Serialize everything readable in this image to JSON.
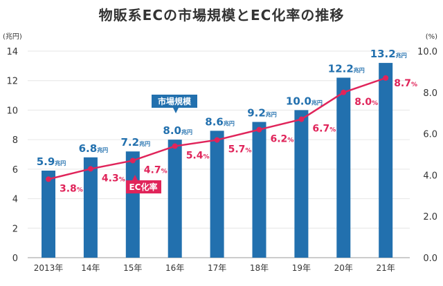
{
  "chart_data": {
    "type": "bar+line",
    "title": "物販系ECの市場規模とEC化率の推移",
    "categories": [
      "2013年",
      "14年",
      "15年",
      "16年",
      "17年",
      "18年",
      "19年",
      "20年",
      "21年"
    ],
    "left_axis": {
      "unit_label": "(兆円)",
      "ylim": [
        0,
        14
      ],
      "ticks": [
        "0",
        "2",
        "4",
        "6",
        "8",
        "10",
        "12",
        "14"
      ]
    },
    "right_axis": {
      "unit_label": "(%)",
      "ylim": [
        0,
        10
      ],
      "ticks": [
        "0.0",
        "2.0",
        "4.0",
        "6.0",
        "8.0",
        "10.0"
      ]
    },
    "grid": true,
    "series": [
      {
        "name": "市場規模",
        "type": "bar",
        "axis": "left",
        "unit": "兆円",
        "color": "#2270ae",
        "values": [
          5.9,
          6.8,
          7.2,
          8.0,
          8.6,
          9.2,
          10.0,
          12.2,
          13.2
        ],
        "labels": [
          "5.9",
          "6.8",
          "7.2",
          "8.0",
          "8.6",
          "9.2",
          "10.0",
          "12.2",
          "13.2"
        ]
      },
      {
        "name": "EC化率",
        "type": "line",
        "axis": "right",
        "unit": "%",
        "color": "#e0245a",
        "values": [
          3.8,
          4.3,
          4.7,
          5.4,
          5.7,
          6.2,
          6.7,
          8.0,
          8.7
        ],
        "labels": [
          "3.8",
          "4.3",
          "4.7",
          "5.4",
          "5.7",
          "6.2",
          "6.7",
          "8.0",
          "8.7"
        ]
      }
    ]
  }
}
